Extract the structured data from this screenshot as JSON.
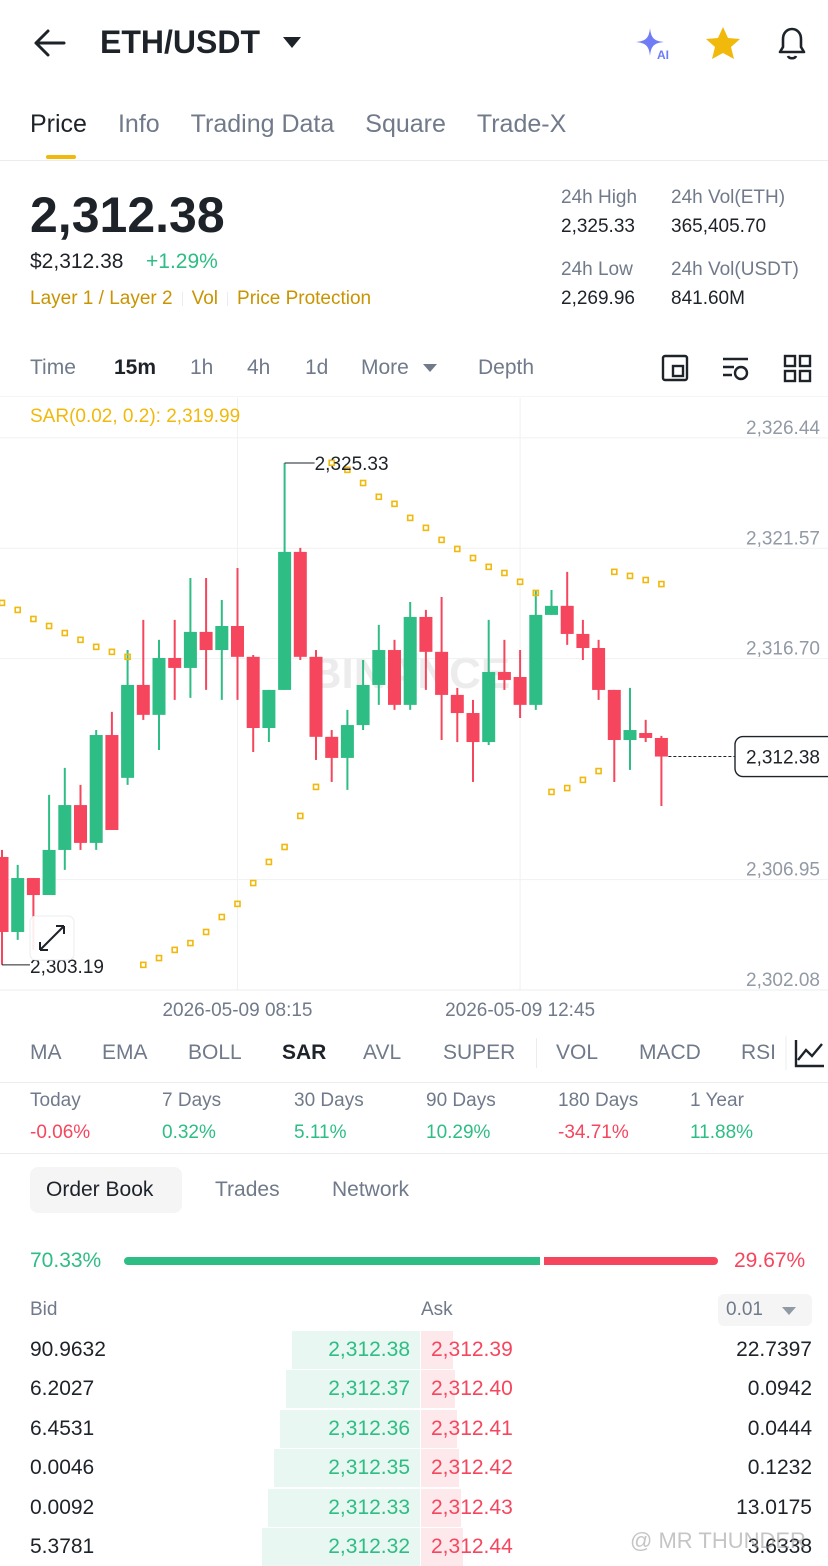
{
  "header": {
    "pair": "ETH/USDT",
    "ai_badge": "AI"
  },
  "tabs": [
    "Price",
    "Info",
    "Trading Data",
    "Square",
    "Trade-X"
  ],
  "ticker": {
    "last": "2,312.38",
    "usd": "$2,312.38",
    "change": "+1.29%",
    "tags": [
      "Layer 1 / Layer 2",
      "Vol",
      "Price Protection"
    ],
    "stats": [
      {
        "label": "24h High",
        "value": "2,325.33"
      },
      {
        "label": "24h Vol(ETH)",
        "value": "365,405.70"
      },
      {
        "label": "24h Low",
        "value": "2,269.96"
      },
      {
        "label": "24h Vol(USDT)",
        "value": "841.60M"
      }
    ]
  },
  "intervals": [
    "Time",
    "15m",
    "1h",
    "4h",
    "1d",
    "More",
    "Depth"
  ],
  "chart_data": {
    "type": "candlestick",
    "indicator_label": "SAR(0.02, 0.2): 2,319.99",
    "watermark": "BINANCE",
    "categories": [
      null,
      null,
      null,
      null,
      null,
      null,
      null,
      null,
      null,
      null,
      null,
      null,
      null,
      null,
      null,
      "2026-05-09 08:15",
      null,
      null,
      null,
      null,
      null,
      null,
      null,
      null,
      null,
      null,
      null,
      null,
      null,
      null,
      null,
      null,
      null,
      "2026-05-09 12:45",
      null,
      null,
      null,
      null,
      null,
      null,
      null,
      null,
      null
    ],
    "open": [
      2307.95,
      2304.64,
      2307.02,
      2306.27,
      2308.26,
      2310.24,
      2308.57,
      2313.33,
      2311.44,
      2315.54,
      2314.22,
      2316.73,
      2316.29,
      2317.88,
      2317.08,
      2318.14,
      2316.78,
      2313.64,
      2315.32,
      2321.41,
      2316.78,
      2313.25,
      2312.32,
      2313.77,
      2315.54,
      2317.08,
      2314.66,
      2318.54,
      2317.0,
      2315.1,
      2314.3,
      2313.02,
      2316.11,
      2315.89,
      2314.66,
      2318.63,
      2319.03,
      2317.79,
      2317.17,
      2315.32,
      2313.11,
      2313.42,
      2313.2
    ],
    "high": [
      2308.26,
      2307.6,
      2307.02,
      2310.69,
      2311.88,
      2311.13,
      2313.55,
      2314.35,
      2317.08,
      2318.41,
      2317.53,
      2318.41,
      2320.26,
      2320.26,
      2319.29,
      2320.7,
      2316.86,
      2315.32,
      2325.33,
      2321.59,
      2317.08,
      2313.55,
      2314.44,
      2316.64,
      2318.19,
      2317.53,
      2319.2,
      2318.85,
      2319.42,
      2315.41,
      2314.88,
      2318.41,
      2317.53,
      2317.08,
      2319.73,
      2319.73,
      2320.53,
      2318.41,
      2317.53,
      2315.32,
      2315.41,
      2314.0,
      2313.29
    ],
    "low": [
      2303.19,
      2304.29,
      2303.85,
      2306.27,
      2307.38,
      2308.26,
      2308.26,
      2309.14,
      2311.13,
      2314.0,
      2312.67,
      2314.88,
      2314.97,
      2315.32,
      2314.88,
      2314.88,
      2312.58,
      2313.02,
      2315.32,
      2316.64,
      2312.23,
      2311.26,
      2310.91,
      2313.55,
      2314.66,
      2314.44,
      2314.44,
      2315.32,
      2313.11,
      2313.02,
      2311.26,
      2312.89,
      2315.32,
      2314.08,
      2314.44,
      2318.63,
      2317.31,
      2316.64,
      2314.88,
      2311.26,
      2311.79,
      2313.02,
      2310.2
    ],
    "close": [
      2304.64,
      2307.02,
      2306.27,
      2308.26,
      2310.24,
      2308.57,
      2313.33,
      2309.14,
      2315.54,
      2314.22,
      2316.73,
      2316.29,
      2317.88,
      2317.08,
      2318.14,
      2316.78,
      2313.64,
      2315.32,
      2321.41,
      2316.78,
      2313.25,
      2312.32,
      2313.77,
      2315.54,
      2317.08,
      2314.66,
      2318.54,
      2317.0,
      2315.1,
      2314.3,
      2313.02,
      2316.11,
      2315.76,
      2314.66,
      2318.63,
      2319.03,
      2317.79,
      2317.17,
      2315.32,
      2313.11,
      2313.55,
      2313.2,
      2312.38
    ],
    "sar": [
      2319.16,
      2318.85,
      2318.45,
      2318.14,
      2317.83,
      2317.53,
      2317.22,
      2317.0,
      2316.78,
      2303.19,
      2303.49,
      2303.85,
      2304.15,
      2304.64,
      2305.3,
      2305.88,
      2306.8,
      2307.73,
      2308.39,
      2309.76,
      2311.04,
      2325.34,
      2325.03,
      2324.45,
      2323.84,
      2323.53,
      2322.91,
      2322.47,
      2321.94,
      2321.54,
      2321.14,
      2320.75,
      2320.48,
      2320.09,
      2319.6,
      2310.82,
      2310.99,
      2311.35,
      2311.74,
      2320.53,
      2320.35,
      2320.17,
      2319.99
    ],
    "up_color": "#2ebd85",
    "down_color": "#f6465d",
    "sar_color": "#f0b90b",
    "ylim": [
      2302.08,
      2328.2
    ],
    "yticks": [
      {
        "value": 2326.44,
        "label": "2,326.44"
      },
      {
        "value": 2321.57,
        "label": "2,321.57"
      },
      {
        "value": 2316.7,
        "label": "2,316.70"
      },
      {
        "value": 2306.95,
        "label": "2,306.95"
      },
      {
        "value": 2302.08,
        "label": "2,302.08"
      }
    ],
    "grid": true,
    "annotations": {
      "high": {
        "value": 2325.33,
        "label": "2,325.33"
      },
      "low": {
        "value": 2303.19,
        "label": "2,303.19"
      },
      "last": {
        "value": 2312.38,
        "label": "2,312.38"
      }
    }
  },
  "indicators": [
    "MA",
    "EMA",
    "BOLL",
    "SAR",
    "AVL",
    "SUPER",
    "VOL",
    "MACD",
    "RSI"
  ],
  "performance": [
    {
      "period": "Today",
      "change": "-0.06%"
    },
    {
      "period": "7 Days",
      "change": "0.32%"
    },
    {
      "period": "30 Days",
      "change": "5.11%"
    },
    {
      "period": "90 Days",
      "change": "10.29%"
    },
    {
      "period": "180 Days",
      "change": "-34.71%"
    },
    {
      "period": "1 Year",
      "change": "11.88%"
    }
  ],
  "book_tabs": [
    "Order Book",
    "Trades",
    "Network"
  ],
  "order_book": {
    "bid_ratio": {
      "value": 70.33,
      "label": "70.33%"
    },
    "ask_ratio": {
      "value": 29.67,
      "label": "29.67%"
    },
    "bid_header": "Bid",
    "ask_header": "Ask",
    "precision": "0.01",
    "rows": [
      [
        "90.9632",
        "2,312.38",
        "2,312.39",
        "22.7397"
      ],
      [
        "6.2027",
        "2,312.37",
        "2,312.40",
        "0.0942"
      ],
      [
        "6.4531",
        "2,312.36",
        "2,312.41",
        "0.0444"
      ],
      [
        "0.0046",
        "2,312.35",
        "2,312.42",
        "0.1232"
      ],
      [
        "0.0092",
        "2,312.33",
        "2,312.43",
        "13.0175"
      ],
      [
        "5.3781",
        "2,312.32",
        "2,312.44",
        "3.6338"
      ]
    ]
  },
  "watermark": "@ MR THUNDER"
}
